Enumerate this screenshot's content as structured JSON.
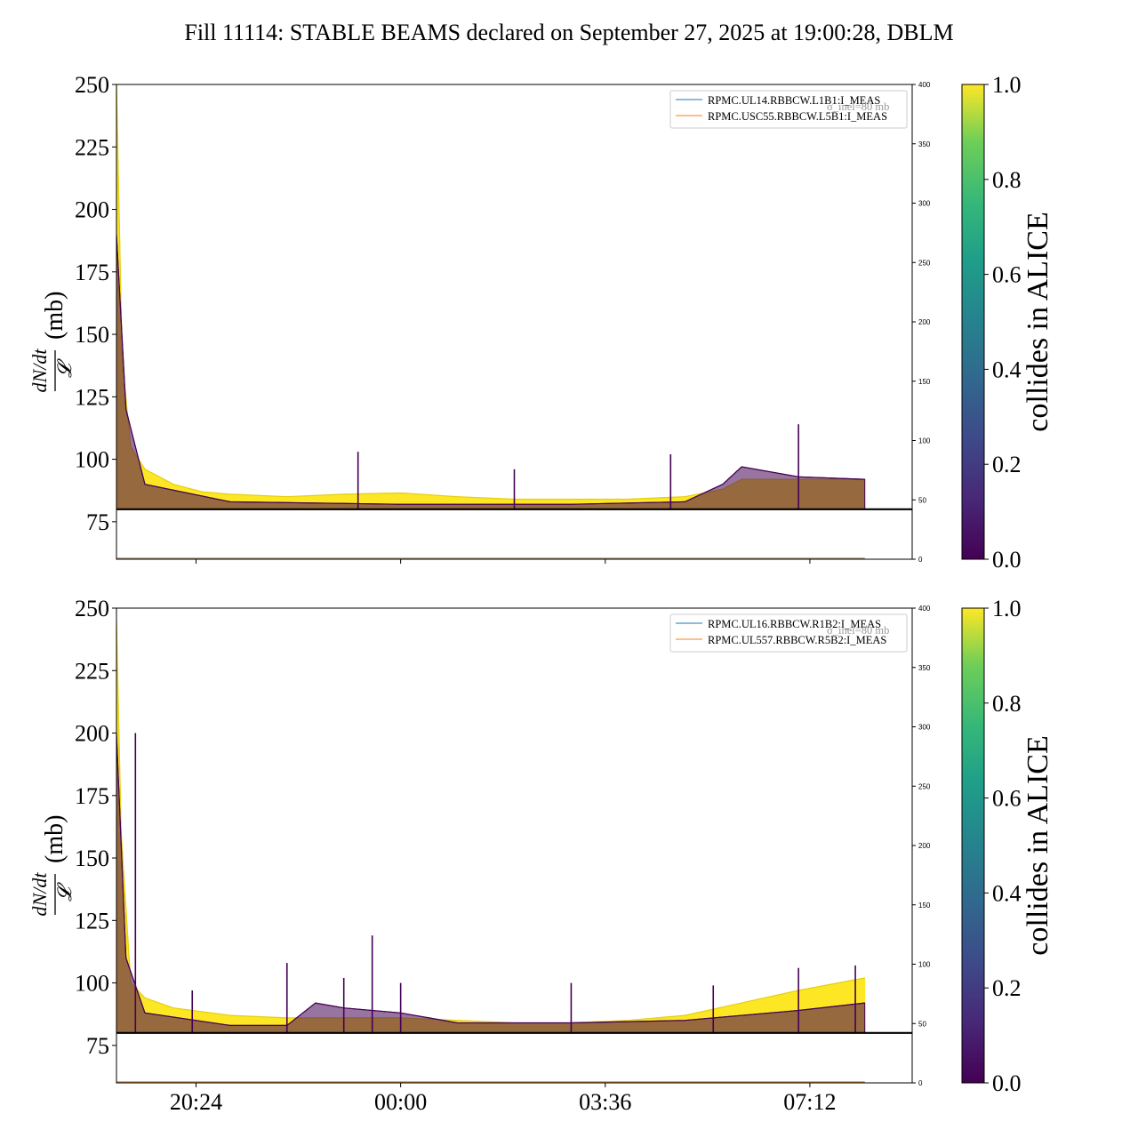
{
  "title": "Fill 11114: STABLE BEAMS declared on September 27, 2025 at 19:00:28, DBLM",
  "x_tick_labels": [
    "20:24",
    "00:00",
    "03:36",
    "07:12"
  ],
  "y_tick_labels": [
    "75",
    "100",
    "125",
    "150",
    "175",
    "200",
    "225",
    "250"
  ],
  "y2_tick_labels": [
    "0",
    "50",
    "100",
    "150",
    "200",
    "250",
    "300",
    "350",
    "400"
  ],
  "cbar_tick_labels": [
    "0.0",
    "0.2",
    "0.4",
    "0.6",
    "0.8",
    "1.0"
  ],
  "ylabel_numerator": "dN/dt",
  "ylabel_denominator": "𝓛",
  "ylabel_unit": "(mb)",
  "cbar_label": "collides in ALICE",
  "legend_note": "σ_inel=80 mb",
  "colors": {
    "purple": "#440154",
    "yellow": "#fde725",
    "blue_line": "#1f77b4",
    "orange_line": "#ff7f0e"
  },
  "chart_data": [
    {
      "type": "line",
      "xlabel": "",
      "ylabel": "dN/dt / L (mb)",
      "ylim": [
        60,
        250
      ],
      "y2lim": [
        0,
        400
      ],
      "xlim": [
        "2025-09-27 19:00",
        "2025-09-28 09:00"
      ],
      "reference_line_y": 80,
      "legend": [
        "RPMC.UL14.RBBCW.L1B1:I_MEAS",
        "RPMC.USC55.RBBCW.L5B1:I_MEAS"
      ],
      "legend_position": "upper right",
      "colorbar": {
        "label": "collides in ALICE",
        "range": [
          0.0,
          1.0
        ]
      },
      "series": [
        {
          "name": "collides in ALICE = 1",
          "color": "#fde725",
          "x": [
            "2025-09-27 19:00",
            "2025-09-27 19:06",
            "2025-09-27 19:15",
            "2025-09-27 19:30",
            "2025-09-27 20:00",
            "2025-09-27 20:30",
            "2025-09-27 21:00",
            "2025-09-27 22:00",
            "2025-09-27 23:00",
            "2025-09-28 00:00",
            "2025-09-28 01:00",
            "2025-09-28 02:00",
            "2025-09-28 03:00",
            "2025-09-28 04:00",
            "2025-09-28 05:00",
            "2025-09-28 05:40",
            "2025-09-28 06:00",
            "2025-09-28 07:00",
            "2025-09-28 08:10"
          ],
          "y": [
            250,
            140,
            105,
            96,
            90,
            87,
            86,
            85,
            86,
            86.5,
            85,
            84,
            84,
            84,
            85,
            88,
            92,
            92,
            92
          ]
        },
        {
          "name": "collides in ALICE = 0",
          "color": "#440154",
          "x": [
            "2025-09-27 19:00",
            "2025-09-27 19:10",
            "2025-09-27 19:30",
            "2025-09-27 21:00",
            "2025-09-28 00:00",
            "2025-09-28 03:00",
            "2025-09-28 05:00",
            "2025-09-28 05:40",
            "2025-09-28 06:00",
            "2025-09-28 07:00",
            "2025-09-28 08:10"
          ],
          "y": [
            190,
            120,
            90,
            83,
            82,
            82,
            83,
            90,
            97,
            93,
            92
          ]
        },
        {
          "name": "spikes",
          "color": "#440154",
          "x": [
            "2025-09-27 23:15",
            "2025-09-28 02:00",
            "2025-09-28 04:45",
            "2025-09-28 07:00"
          ],
          "y": [
            103,
            96,
            102,
            114
          ]
        }
      ]
    },
    {
      "type": "line",
      "xlabel": "",
      "ylabel": "dN/dt / L (mb)",
      "ylim": [
        60,
        250
      ],
      "y2lim": [
        0,
        400
      ],
      "xlim": [
        "2025-09-27 19:00",
        "2025-09-28 09:00"
      ],
      "reference_line_y": 80,
      "legend": [
        "RPMC.UL16.RBBCW.R1B2:I_MEAS",
        "RPMC.UL557.RBBCW.R5B2:I_MEAS"
      ],
      "legend_position": "upper right",
      "colorbar": {
        "label": "collides in ALICE",
        "range": [
          0.0,
          1.0
        ]
      },
      "series": [
        {
          "name": "collides in ALICE = 1",
          "color": "#fde725",
          "x": [
            "2025-09-27 19:00",
            "2025-09-27 19:05",
            "2025-09-27 19:15",
            "2025-09-27 19:30",
            "2025-09-27 20:00",
            "2025-09-27 21:00",
            "2025-09-27 22:00",
            "2025-09-27 22:30",
            "2025-09-28 00:00",
            "2025-09-28 01:00",
            "2025-09-28 02:00",
            "2025-09-28 03:00",
            "2025-09-28 04:00",
            "2025-09-28 05:00",
            "2025-09-28 06:00",
            "2025-09-28 07:00",
            "2025-09-28 08:10"
          ],
          "y": [
            245,
            160,
            100,
            94,
            90,
            87,
            86,
            86,
            86,
            85,
            84,
            84,
            85,
            87,
            92,
            97,
            102
          ]
        },
        {
          "name": "collides in ALICE = 0",
          "color": "#440154",
          "x": [
            "2025-09-27 19:00",
            "2025-09-27 19:10",
            "2025-09-27 19:30",
            "2025-09-27 21:00",
            "2025-09-27 22:00",
            "2025-09-27 22:30",
            "2025-09-27 23:00",
            "2025-09-28 00:00",
            "2025-09-28 00:30",
            "2025-09-28 01:00",
            "2025-09-28 03:00",
            "2025-09-28 05:00",
            "2025-09-28 07:00",
            "2025-09-28 08:10"
          ],
          "y": [
            200,
            110,
            88,
            83,
            83,
            92,
            90,
            88,
            86,
            84,
            84,
            85,
            89,
            92
          ]
        },
        {
          "name": "spikes",
          "color": "#440154",
          "x": [
            "2025-09-27 19:20",
            "2025-09-27 20:20",
            "2025-09-27 22:00",
            "2025-09-27 23:00",
            "2025-09-27 23:30",
            "2025-09-28 00:00",
            "2025-09-28 03:00",
            "2025-09-28 05:30",
            "2025-09-28 07:00",
            "2025-09-28 08:00"
          ],
          "y": [
            200,
            97,
            108,
            102,
            119,
            100,
            100,
            99,
            106,
            107
          ]
        }
      ]
    }
  ]
}
